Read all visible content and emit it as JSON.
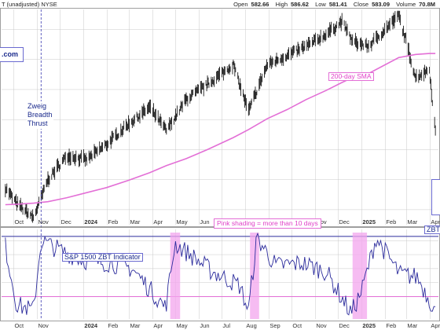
{
  "header": {
    "title": "T (unadjusted)",
    "exchange": "NYSE",
    "open_label": "Open",
    "open": "582.66",
    "high_label": "High",
    "high": "586.62",
    "low_label": "Low",
    "low": "581.41",
    "close_label": "Close",
    "close": "583.09",
    "volume_label": "Volume",
    "volume": "70.8M"
  },
  "annotations": {
    "url": ".com",
    "zweig": "Zweig\nBreadth\nThrust",
    "sma": "200-day SMA",
    "pink_shading": "Pink shading = more than 10 days",
    "zbt_indicator": "S&P 1500 ZBT Indicator",
    "zbt_right": "ZBT"
  },
  "colors": {
    "price_bars": "#000000",
    "sma": "#e36fd6",
    "indicator": "#2b2b9c",
    "threshold": "#e36fd6",
    "shading": "#f3a6ee",
    "grid": "#c9c9c9",
    "annotation_text": "#1a2a8c"
  },
  "chart_data": [
    {
      "type": "line",
      "panel": "price",
      "title": "",
      "xlabel": "",
      "ylabel": "",
      "x_ticks": [
        "Oct",
        "Nov",
        "Dec",
        "2024",
        "Feb",
        "Mar",
        "Apr",
        "May",
        "Jun",
        "Jul",
        "Aug",
        "Sep",
        "Oct",
        "Nov",
        "Dec",
        "2025",
        "Feb",
        "Mar",
        "Apr"
      ],
      "x": [
        "2023-09-20",
        "2023-10-05",
        "2023-10-27",
        "2023-11-15",
        "2023-12-10",
        "2024-01-05",
        "2024-01-31",
        "2024-02-28",
        "2024-03-28",
        "2024-04-19",
        "2024-05-15",
        "2024-06-12",
        "2024-07-16",
        "2024-08-05",
        "2024-08-30",
        "2024-09-25",
        "2024-10-20",
        "2024-11-15",
        "2024-12-06",
        "2024-12-20",
        "2025-01-10",
        "2025-02-19",
        "2025-03-13",
        "2025-03-31",
        "2025-04-08"
      ],
      "series": [
        {
          "values": [
            4420,
            4260,
            4120,
            4500,
            4740,
            4700,
            4850,
            5050,
            5220,
            4990,
            5300,
            5450,
            5650,
            5180,
            5650,
            5740,
            5830,
            5950,
            6080,
            5880,
            5830,
            6140,
            5520,
            5600,
            4980
          ]
        },
        {
          "name": "200-day SMA",
          "values": [
            4250,
            4255,
            4265,
            4280,
            4320,
            4370,
            4420,
            4490,
            4570,
            4640,
            4710,
            4800,
            4920,
            5000,
            5110,
            5200,
            5300,
            5390,
            5470,
            5520,
            5560,
            5720,
            5750,
            5760,
            5760
          ]
        }
      ],
      "grid": true
    },
    {
      "type": "line",
      "panel": "indicator",
      "title": "",
      "xlabel": "",
      "ylabel": "",
      "x_ticks": [
        "Oct",
        "Nov",
        "2024",
        "Feb",
        "Mar",
        "Apr",
        "May",
        "Jun",
        "Jul",
        "Aug",
        "Sep",
        "Oct",
        "Nov",
        "Dec",
        "2025",
        "Feb",
        "Mar",
        "Apr"
      ],
      "x": [
        "2023-09-20",
        "2023-10-05",
        "2023-10-27",
        "2023-11-06",
        "2023-12-05",
        "2024-01-03",
        "2024-02-05",
        "2024-03-05",
        "2024-04-18",
        "2024-04-30",
        "2024-05-20",
        "2024-06-18",
        "2024-07-24",
        "2024-08-05",
        "2024-08-16",
        "2024-09-10",
        "2024-10-15",
        "2024-11-15",
        "2024-12-18",
        "2025-01-01",
        "2025-01-20",
        "2025-02-20",
        "2025-03-15",
        "2025-04-08"
      ],
      "series": [
        {
          "name": "S&P 1500 ZBT Indicator",
          "values": [
            0.58,
            0.37,
            0.35,
            0.6,
            0.56,
            0.53,
            0.52,
            0.5,
            0.36,
            0.59,
            0.55,
            0.49,
            0.44,
            0.35,
            0.61,
            0.51,
            0.52,
            0.49,
            0.34,
            0.42,
            0.61,
            0.48,
            0.47,
            0.35
          ]
        }
      ],
      "thresholds": [
        0.4,
        0.615
      ],
      "shaded_periods": [
        [
          "2024-04-24",
          "2024-05-07"
        ],
        [
          "2024-08-07",
          "2024-08-19"
        ],
        [
          "2024-12-20",
          "2025-01-08"
        ]
      ],
      "grid": true
    }
  ]
}
